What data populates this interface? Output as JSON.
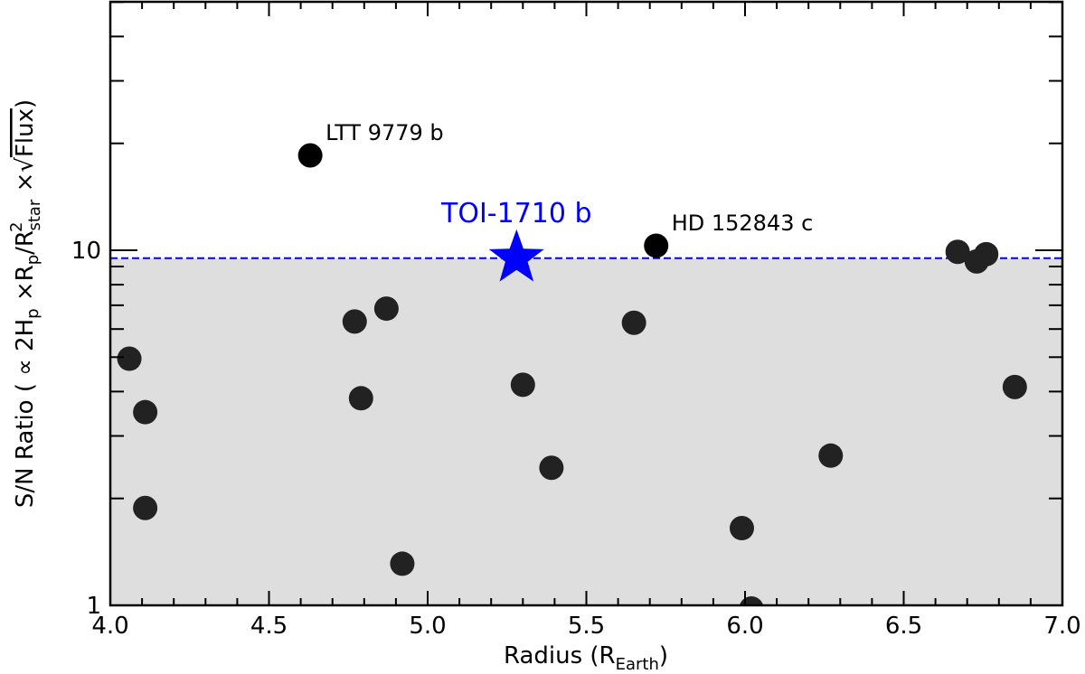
{
  "chart_data": {
    "type": "scatter",
    "xlabel_main": "Radius (R",
    "xlabel_sub": "Earth",
    "xlabel_end": ")",
    "ylabel": "S/N Ratio ( ∝ 2H",
    "xlim": [
      4.0,
      7.0
    ],
    "ylim": [
      1,
      50
    ],
    "yscale": "log",
    "x_ticks": [
      {
        "value": 4.0,
        "label": "4.0"
      },
      {
        "value": 4.5,
        "label": "4.5"
      },
      {
        "value": 5.0,
        "label": "5.0"
      },
      {
        "value": 5.5,
        "label": "5.5"
      },
      {
        "value": 6.0,
        "label": "6.0"
      },
      {
        "value": 6.5,
        "label": "6.5"
      },
      {
        "value": 7.0,
        "label": "7.0"
      }
    ],
    "y_ticks": [
      {
        "value": 1,
        "label": "1"
      },
      {
        "value": 10,
        "label": "10"
      }
    ],
    "threshold": 9.5,
    "threshold_color": "#0000ff",
    "shade_color": "#dedede",
    "point_color": "#222222",
    "highlight_color": "#0000ff",
    "points": [
      {
        "x": 4.06,
        "y": 4.95
      },
      {
        "x": 4.11,
        "y": 3.5
      },
      {
        "x": 4.11,
        "y": 1.88
      },
      {
        "x": 4.63,
        "y": 18.5,
        "label": "LTT 9779 b"
      },
      {
        "x": 4.77,
        "y": 6.3
      },
      {
        "x": 4.79,
        "y": 3.83
      },
      {
        "x": 4.87,
        "y": 6.85
      },
      {
        "x": 4.92,
        "y": 1.31
      },
      {
        "x": 5.3,
        "y": 4.18
      },
      {
        "x": 5.39,
        "y": 2.44
      },
      {
        "x": 5.65,
        "y": 6.25
      },
      {
        "x": 5.72,
        "y": 10.3,
        "label": "HD 152843 c"
      },
      {
        "x": 5.99,
        "y": 1.65
      },
      {
        "x": 6.02,
        "y": 0.98
      },
      {
        "x": 6.27,
        "y": 2.64
      },
      {
        "x": 6.67,
        "y": 9.9
      },
      {
        "x": 6.73,
        "y": 9.3
      },
      {
        "x": 6.76,
        "y": 9.75
      },
      {
        "x": 6.85,
        "y": 4.12
      }
    ],
    "highlight": {
      "x": 5.28,
      "y": 9.5,
      "label": "TOI-1710 b"
    }
  }
}
